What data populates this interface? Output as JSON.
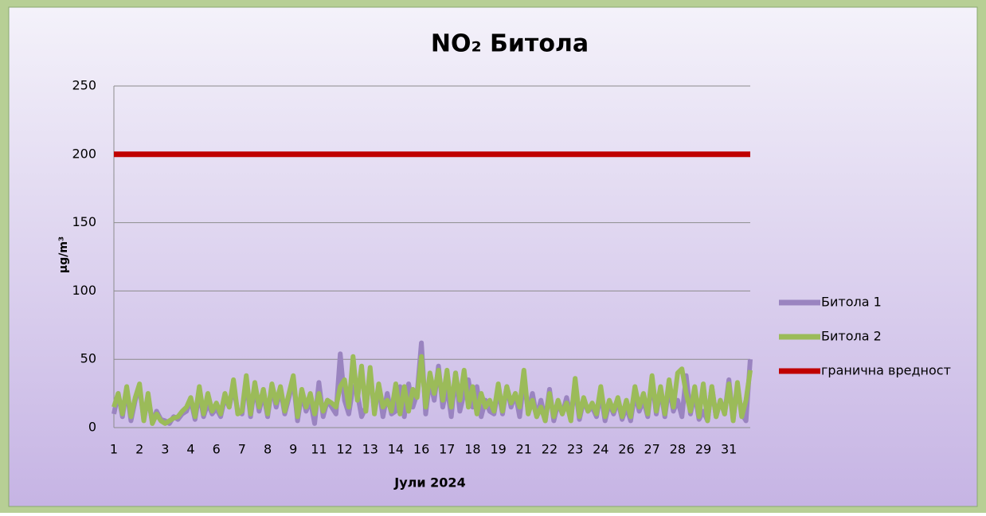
{
  "chart_data": {
    "type": "line",
    "title": "NO₂ Битола",
    "x_label": "Јули 2024",
    "y_label": "µg/m³",
    "categories": [
      "1",
      null,
      null,
      null,
      null,
      null,
      "2",
      null,
      null,
      null,
      null,
      null,
      "3",
      null,
      null,
      null,
      null,
      null,
      "4",
      null,
      null,
      null,
      null,
      null,
      "6",
      null,
      null,
      null,
      null,
      null,
      "7",
      null,
      null,
      null,
      null,
      null,
      "8",
      null,
      null,
      null,
      null,
      null,
      "9",
      null,
      null,
      null,
      null,
      null,
      "11",
      null,
      null,
      null,
      null,
      null,
      "12",
      null,
      null,
      null,
      null,
      null,
      "13",
      null,
      null,
      null,
      null,
      null,
      "14",
      null,
      null,
      null,
      null,
      null,
      "16",
      null,
      null,
      null,
      null,
      null,
      "17",
      null,
      null,
      null,
      null,
      null,
      "18",
      null,
      null,
      null,
      null,
      null,
      "19",
      null,
      null,
      null,
      null,
      null,
      "21",
      null,
      null,
      null,
      null,
      null,
      "22",
      null,
      null,
      null,
      null,
      null,
      "23",
      null,
      null,
      null,
      null,
      null,
      "24",
      null,
      null,
      null,
      null,
      null,
      "26",
      null,
      null,
      null,
      null,
      null,
      "27",
      null,
      null,
      null,
      null,
      null,
      "28",
      null,
      null,
      null,
      null,
      null,
      "29",
      null,
      null,
      null,
      null,
      null,
      "31",
      null,
      null,
      null,
      null,
      null
    ],
    "series": [
      {
        "name": "Битола 1",
        "color": "#9a84c0",
        "values": [
          10,
          25,
          8,
          28,
          5,
          20,
          30,
          6,
          22,
          4,
          12,
          6,
          5,
          3,
          8,
          6,
          10,
          12,
          20,
          6,
          25,
          8,
          18,
          10,
          14,
          8,
          22,
          15,
          30,
          12,
          10,
          35,
          8,
          30,
          12,
          25,
          8,
          30,
          15,
          28,
          10,
          22,
          35,
          5,
          25,
          12,
          20,
          3,
          33,
          8,
          20,
          15,
          10,
          54,
          20,
          10,
          30,
          25,
          8,
          15,
          40,
          12,
          30,
          8,
          25,
          10,
          12,
          30,
          8,
          32,
          15,
          25,
          62,
          10,
          35,
          20,
          45,
          15,
          30,
          8,
          40,
          12,
          25,
          35,
          15,
          30,
          8,
          20,
          12,
          10,
          28,
          10,
          30,
          15,
          25,
          8,
          35,
          12,
          25,
          8,
          20,
          5,
          28,
          5,
          18,
          10,
          22,
          8,
          30,
          6,
          20,
          12,
          15,
          8,
          25,
          5,
          18,
          10,
          20,
          6,
          15,
          5,
          25,
          12,
          20,
          8,
          35,
          10,
          28,
          8,
          30,
          12,
          20,
          8,
          38,
          10,
          25,
          6,
          12,
          5,
          30,
          8,
          20,
          10,
          35,
          6,
          30,
          10,
          5,
          50
        ]
      },
      {
        "name": "Битола 2",
        "color": "#9bbb59",
        "values": [
          15,
          25,
          10,
          30,
          8,
          22,
          32,
          5,
          25,
          3,
          10,
          5,
          3,
          5,
          7,
          8,
          12,
          15,
          22,
          8,
          30,
          10,
          25,
          12,
          18,
          10,
          25,
          15,
          35,
          10,
          12,
          38,
          10,
          33,
          15,
          28,
          10,
          32,
          18,
          30,
          12,
          25,
          38,
          8,
          28,
          15,
          25,
          10,
          25,
          12,
          20,
          18,
          15,
          30,
          35,
          15,
          52,
          20,
          45,
          12,
          44,
          10,
          32,
          15,
          20,
          12,
          32,
          10,
          30,
          12,
          28,
          22,
          52,
          15,
          40,
          25,
          42,
          20,
          42,
          15,
          40,
          20,
          42,
          15,
          30,
          10,
          25,
          15,
          20,
          12,
          32,
          12,
          30,
          18,
          25,
          15,
          42,
          10,
          20,
          8,
          15,
          5,
          25,
          8,
          20,
          10,
          18,
          5,
          36,
          8,
          22,
          12,
          18,
          10,
          30,
          8,
          20,
          12,
          22,
          8,
          20,
          8,
          30,
          15,
          25,
          10,
          38,
          12,
          30,
          10,
          35,
          15,
          40,
          43,
          25,
          12,
          30,
          8,
          32,
          5,
          30,
          8,
          20,
          10,
          32,
          5,
          33,
          8,
          20,
          42
        ]
      },
      {
        "name": "гранична вредност",
        "color": "#c00000",
        "values": [
          200,
          200,
          200,
          200,
          200,
          200,
          200,
          200,
          200,
          200,
          200,
          200,
          200,
          200,
          200,
          200,
          200,
          200,
          200,
          200,
          200,
          200,
          200,
          200,
          200,
          200,
          200,
          200,
          200,
          200,
          200,
          200,
          200,
          200,
          200,
          200,
          200,
          200,
          200,
          200,
          200,
          200,
          200,
          200,
          200,
          200,
          200,
          200,
          200,
          200,
          200,
          200,
          200,
          200,
          200,
          200,
          200,
          200,
          200,
          200,
          200,
          200,
          200,
          200,
          200,
          200,
          200,
          200,
          200,
          200,
          200,
          200,
          200,
          200,
          200,
          200,
          200,
          200,
          200,
          200,
          200,
          200,
          200,
          200,
          200,
          200,
          200,
          200,
          200,
          200,
          200,
          200,
          200,
          200,
          200,
          200,
          200,
          200,
          200,
          200,
          200,
          200,
          200,
          200,
          200,
          200,
          200,
          200,
          200,
          200,
          200,
          200,
          200,
          200,
          200,
          200,
          200,
          200,
          200,
          200,
          200,
          200,
          200,
          200,
          200,
          200,
          200,
          200,
          200,
          200,
          200,
          200,
          200,
          200,
          200,
          200,
          200,
          200,
          200,
          200,
          200,
          200,
          200,
          200,
          200,
          200,
          200,
          200,
          200,
          200
        ]
      }
    ],
    "ylim": [
      0,
      250
    ],
    "yticks": [
      0,
      50,
      100,
      150,
      200,
      250
    ],
    "grid": true,
    "legend": "right"
  }
}
